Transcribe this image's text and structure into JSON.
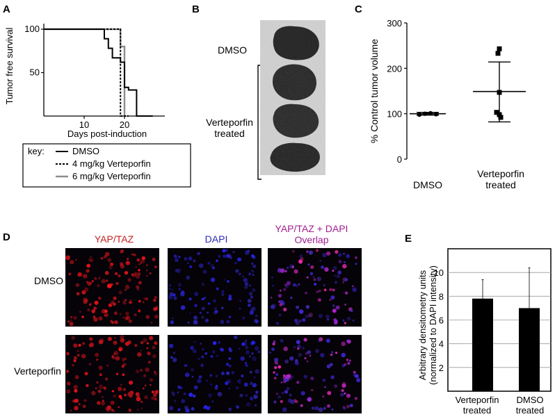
{
  "panels": {
    "a": "A",
    "b": "B",
    "c": "C",
    "d": "D",
    "e": "E"
  },
  "colors": {
    "dmso": "#000000",
    "vp4": "#000000",
    "vp6": "#8c8c8c",
    "yap_red": "#c41f22",
    "dapi_blue": "#1b1bb5",
    "overlap_magenta": "#9a1a8c",
    "tumor": "#2c2c2c",
    "paper_bg": "#b9b9b9"
  },
  "panel_a": {
    "key_label": "key:",
    "legend": [
      "DMSO",
      "4 mg/kg Verteporfin",
      "6 mg/kg Verteporfin"
    ]
  },
  "panel_b": {
    "dmso_label": "DMSO",
    "treated_label_1": "Verteporfin",
    "treated_label_2": "treated"
  },
  "panel_c": {
    "treated_label_1": "Verteporfin",
    "treated_label_2": "treated"
  },
  "panel_d": {
    "col_yap": "YAP/TAZ",
    "col_dapi": "DAPI",
    "col_overlap_1": "YAP/TAZ + DAPI",
    "col_overlap_2": "Overlap",
    "row_dmso": "DMSO",
    "row_vp": "Verteporfin"
  },
  "panel_e": {
    "cat1_line1": "Verteporfin",
    "cat1_line2": "treated",
    "cat2_line1": "DMSO",
    "cat2_line2": "treated",
    "ylabel_line2": "(normalized to DAPI intensity)"
  },
  "chart_data": [
    {
      "type": "line",
      "title": "",
      "xlabel": "Days post-induction",
      "ylabel": "Tumor free survival",
      "xlim": [
        0,
        30
      ],
      "ylim": [
        0,
        100
      ],
      "xticks": [
        10,
        20
      ],
      "yticks": [
        50,
        100
      ],
      "legend_position": "bottom",
      "series": [
        {
          "name": "DMSO",
          "step": true,
          "x": [
            0,
            15,
            15,
            16,
            16,
            17,
            17,
            19,
            19,
            20,
            20,
            21,
            21,
            23,
            23,
            27
          ],
          "y": [
            100,
            100,
            89,
            89,
            78,
            78,
            67,
            67,
            62,
            62,
            33,
            33,
            30,
            30,
            0,
            0
          ]
        },
        {
          "name": "4 mg/kg Verteporfin",
          "step": true,
          "x": [
            0,
            19,
            19,
            21
          ],
          "y": [
            100,
            100,
            0,
            0
          ]
        },
        {
          "name": "6 mg/kg Verteporfin",
          "step": true,
          "x": [
            0,
            19,
            19,
            20,
            20,
            21
          ],
          "y": [
            100,
            100,
            80,
            80,
            0,
            0
          ]
        }
      ]
    },
    {
      "type": "scatter",
      "title": "",
      "xlabel": "",
      "ylabel": "% Control tumor volume",
      "categories": [
        "DMSO",
        "Verteporfin treated"
      ],
      "ylim": [
        0,
        300
      ],
      "yticks": [
        0,
        100,
        200,
        300
      ],
      "series": [
        {
          "category": "DMSO",
          "points": [
            98,
            100,
            101,
            99
          ],
          "mean": 100,
          "error": [
            97,
            103
          ]
        },
        {
          "category": "Verteporfin treated",
          "points": [
            243,
            233,
            147,
            103,
            98,
            92
          ],
          "mean": 149,
          "error": [
            82,
            214
          ]
        }
      ]
    },
    {
      "type": "bar",
      "title": "",
      "xlabel": "",
      "ylabel": "Arbitrary densitometry units",
      "categories": [
        "Verteporfin treated",
        "DMSO treated"
      ],
      "values": [
        7.8,
        7.0
      ],
      "errors": [
        1.6,
        3.4
      ],
      "ylim": [
        0,
        12
      ],
      "yticks": [
        2,
        4,
        6,
        8,
        10
      ],
      "grid": true
    }
  ]
}
